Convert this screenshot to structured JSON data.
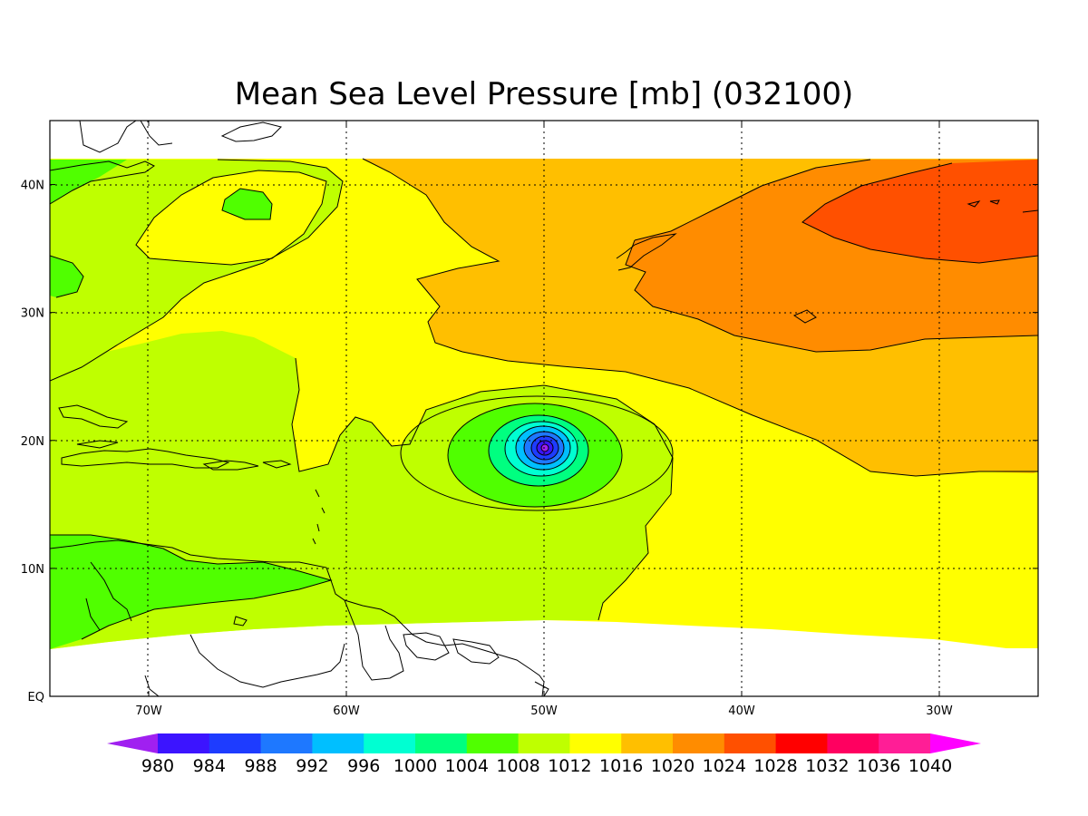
{
  "title": "Mean Sea Level Pressure [mb] (032100)",
  "longitude_ticks": [
    {
      "label": "70W",
      "lon": -70
    },
    {
      "label": "60W",
      "lon": -60
    },
    {
      "label": "50W",
      "lon": -50
    },
    {
      "label": "40W",
      "lon": -40
    },
    {
      "label": "30W",
      "lon": -30
    }
  ],
  "latitude_ticks": [
    {
      "label": "40N",
      "lat": 40
    },
    {
      "label": "30N",
      "lat": 30
    },
    {
      "label": "20N",
      "lat": 20
    },
    {
      "label": "10N",
      "lat": 10
    },
    {
      "label": "EQ",
      "lat": 0
    }
  ],
  "colorbar": {
    "labels": [
      "980",
      "984",
      "988",
      "992",
      "996",
      "1000",
      "1004",
      "1008",
      "1012",
      "1016",
      "1020",
      "1024",
      "1028",
      "1032",
      "1036",
      "1040"
    ],
    "colors": [
      "#a020f0",
      "#3c14ff",
      "#1e3cff",
      "#1e78ff",
      "#00bfff",
      "#00ffd2",
      "#00ff80",
      "#50ff00",
      "#bfff00",
      "#ffff00",
      "#ffbf00",
      "#ff8c00",
      "#ff5000",
      "#ff0000",
      "#ff0060",
      "#ff1e96",
      "#ff00ff"
    ]
  },
  "chart_data": {
    "type": "heatmap",
    "variable": "Mean Sea Level Pressure",
    "units": "mb",
    "lon_range": [
      -75,
      -25
    ],
    "lat_range": [
      0,
      45
    ],
    "contour_interval": 4,
    "features": [
      {
        "kind": "low",
        "lon": -50,
        "lat": 19.3,
        "min_level": 980
      },
      {
        "kind": "high",
        "lon": -30,
        "lat": 37,
        "level": 1024
      },
      {
        "kind": "weak-low",
        "lon": -65,
        "lat": 38,
        "level": 1008
      }
    ]
  }
}
